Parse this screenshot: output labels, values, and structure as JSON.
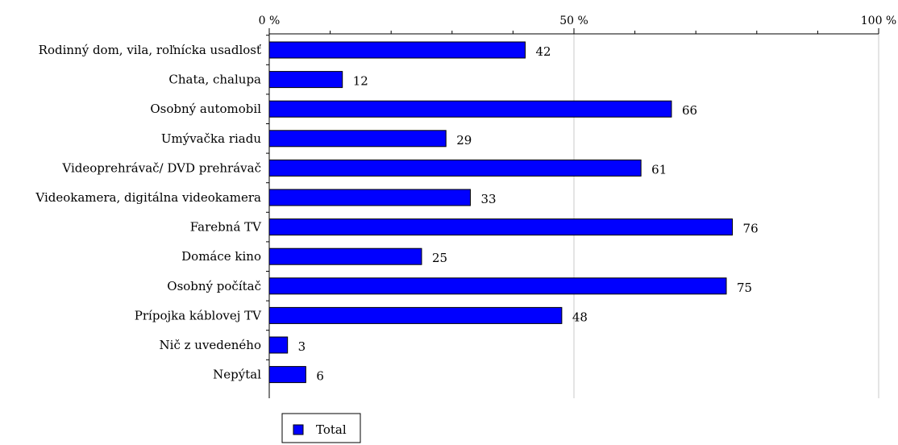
{
  "chart_data": {
    "type": "bar",
    "orientation": "horizontal",
    "categories": [
      "Rodinný dom, vila, roľnícka usadlosť",
      "Chata, chalupa",
      "Osobný automobil",
      "Umývačka riadu",
      "Videoprehrávač/ DVD prehrávač",
      "Videokamera, digitálna videokamera",
      "Farebná TV",
      "Domáce kino",
      "Osobný počítač",
      "Prípojka káblovej TV",
      "Nič z uvedeného",
      "Nepýtal"
    ],
    "series": [
      {
        "name": "Total",
        "color": "#0000ff",
        "values": [
          42,
          12,
          66,
          29,
          61,
          33,
          76,
          25,
          75,
          48,
          3,
          6
        ]
      }
    ],
    "xlim": [
      0,
      100
    ],
    "x_ticks": [
      0,
      50,
      100
    ],
    "x_tick_labels": [
      "0 %",
      "50 %",
      "100 %"
    ],
    "x_axis_position": "top",
    "grid": true,
    "legend": "bottom-left",
    "title": "",
    "xlabel": "",
    "ylabel": ""
  }
}
